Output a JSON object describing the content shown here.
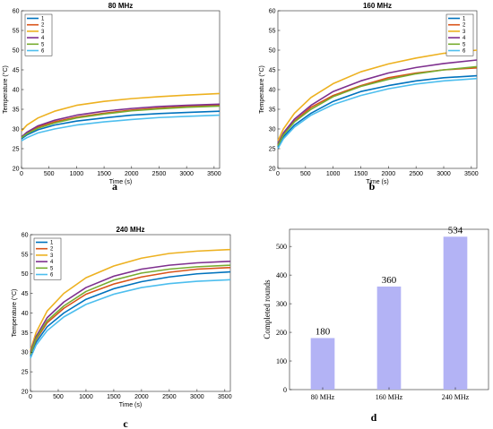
{
  "colors": [
    "#0072BD",
    "#D95319",
    "#EDB120",
    "#7E2F8E",
    "#77AC30",
    "#4DBEEE"
  ],
  "bar_color": "#b3b3f5",
  "chart_data": [
    {
      "type": "line",
      "panel": "a",
      "title": "80 MHz",
      "xlabel": "Time (s)",
      "ylabel": "Temperature (°C)",
      "xlim": [
        0,
        3600
      ],
      "ylim": [
        20,
        60
      ],
      "xticks": [
        0,
        500,
        1000,
        1500,
        2000,
        2500,
        3000,
        3500
      ],
      "yticks": [
        20,
        25,
        30,
        35,
        40,
        45,
        50,
        55,
        60
      ],
      "legend_position": "top-left",
      "series": [
        {
          "name": "1",
          "x": [
            0,
            100,
            300,
            600,
            1000,
            1500,
            2000,
            2500,
            3000,
            3600
          ],
          "y": [
            27.5,
            28.5,
            29.8,
            31.0,
            32.0,
            32.8,
            33.5,
            33.9,
            34.2,
            34.5
          ]
        },
        {
          "name": "2",
          "x": [
            0,
            100,
            300,
            600,
            1000,
            1500,
            2000,
            2500,
            3000,
            3600
          ],
          "y": [
            28.0,
            29.0,
            30.5,
            31.8,
            33.0,
            34.0,
            34.8,
            35.3,
            35.7,
            36.0
          ]
        },
        {
          "name": "3",
          "x": [
            0,
            100,
            300,
            600,
            1000,
            1500,
            2000,
            2500,
            3000,
            3600
          ],
          "y": [
            29.5,
            31.0,
            32.8,
            34.5,
            36.0,
            37.0,
            37.7,
            38.2,
            38.6,
            39.0
          ]
        },
        {
          "name": "4",
          "x": [
            0,
            100,
            300,
            600,
            1000,
            1500,
            2000,
            2500,
            3000,
            3600
          ],
          "y": [
            28.0,
            29.2,
            30.8,
            32.2,
            33.5,
            34.5,
            35.2,
            35.7,
            36.0,
            36.3
          ]
        },
        {
          "name": "5",
          "x": [
            0,
            100,
            300,
            600,
            1000,
            1500,
            2000,
            2500,
            3000,
            3600
          ],
          "y": [
            27.8,
            28.8,
            30.2,
            31.5,
            32.8,
            33.8,
            34.6,
            35.1,
            35.5,
            35.8
          ]
        },
        {
          "name": "6",
          "x": [
            0,
            100,
            300,
            600,
            1000,
            1500,
            2000,
            2500,
            3000,
            3600
          ],
          "y": [
            27.0,
            27.8,
            29.0,
            30.0,
            31.0,
            31.8,
            32.4,
            32.9,
            33.2,
            33.5
          ]
        }
      ]
    },
    {
      "type": "line",
      "panel": "b",
      "title": "160 MHz",
      "xlabel": "Time (s)",
      "ylabel": "Temperature (°C)",
      "xlim": [
        0,
        3600
      ],
      "ylim": [
        20,
        60
      ],
      "xticks": [
        0,
        500,
        1000,
        1500,
        2000,
        2500,
        3000,
        3500
      ],
      "yticks": [
        20,
        25,
        30,
        35,
        40,
        45,
        50,
        55,
        60
      ],
      "legend_position": "top-right",
      "series": [
        {
          "name": "1",
          "x": [
            0,
            100,
            300,
            600,
            1000,
            1500,
            2000,
            2500,
            3000,
            3600
          ],
          "y": [
            25.5,
            28.0,
            31.0,
            34.0,
            37.0,
            39.5,
            41.0,
            42.2,
            43.0,
            43.5
          ]
        },
        {
          "name": "2",
          "x": [
            0,
            100,
            300,
            600,
            1000,
            1500,
            2000,
            2500,
            3000,
            3600
          ],
          "y": [
            26.0,
            28.8,
            32.0,
            35.5,
            38.5,
            41.0,
            43.0,
            44.2,
            45.0,
            45.5
          ]
        },
        {
          "name": "3",
          "x": [
            0,
            100,
            300,
            600,
            1000,
            1500,
            2000,
            2500,
            3000,
            3600
          ],
          "y": [
            27.0,
            30.0,
            34.0,
            38.0,
            41.5,
            44.5,
            46.5,
            48.0,
            49.2,
            50.0
          ]
        },
        {
          "name": "4",
          "x": [
            0,
            100,
            300,
            600,
            1000,
            1500,
            2000,
            2500,
            3000,
            3600
          ],
          "y": [
            26.2,
            29.0,
            32.5,
            36.0,
            39.5,
            42.2,
            44.2,
            45.6,
            46.6,
            47.5
          ]
        },
        {
          "name": "5",
          "x": [
            0,
            100,
            300,
            600,
            1000,
            1500,
            2000,
            2500,
            3000,
            3600
          ],
          "y": [
            25.8,
            28.5,
            31.8,
            35.0,
            38.2,
            40.8,
            42.6,
            44.0,
            45.0,
            45.8
          ]
        },
        {
          "name": "6",
          "x": [
            0,
            100,
            300,
            600,
            1000,
            1500,
            2000,
            2500,
            3000,
            3600
          ],
          "y": [
            25.0,
            27.5,
            30.5,
            33.5,
            36.2,
            38.5,
            40.2,
            41.4,
            42.2,
            42.8
          ]
        }
      ]
    },
    {
      "type": "line",
      "panel": "c",
      "title": "240 MHz",
      "xlabel": "Time (s)",
      "ylabel": "Temperature (°C)",
      "xlim": [
        0,
        3600
      ],
      "ylim": [
        20,
        60
      ],
      "xticks": [
        0,
        500,
        1000,
        1500,
        2000,
        2500,
        3000,
        3500
      ],
      "yticks": [
        20,
        25,
        30,
        35,
        40,
        45,
        50,
        55,
        60
      ],
      "legend_position": "top-left",
      "series": [
        {
          "name": "1",
          "x": [
            0,
            100,
            300,
            600,
            1000,
            1500,
            2000,
            2500,
            3000,
            3600
          ],
          "y": [
            29.0,
            32.5,
            36.5,
            40.0,
            43.5,
            46.2,
            48.0,
            49.2,
            50.0,
            50.5
          ]
        },
        {
          "name": "2",
          "x": [
            0,
            100,
            300,
            600,
            1000,
            1500,
            2000,
            2500,
            3000,
            3600
          ],
          "y": [
            29.5,
            33.2,
            37.5,
            41.2,
            44.8,
            47.4,
            49.2,
            50.4,
            51.2,
            51.6
          ]
        },
        {
          "name": "3",
          "x": [
            0,
            100,
            300,
            600,
            1000,
            1500,
            2000,
            2500,
            3000,
            3600
          ],
          "y": [
            30.5,
            35.0,
            40.5,
            45.0,
            49.0,
            52.0,
            54.0,
            55.2,
            55.8,
            56.2
          ]
        },
        {
          "name": "4",
          "x": [
            0,
            100,
            300,
            600,
            1000,
            1500,
            2000,
            2500,
            3000,
            3600
          ],
          "y": [
            30.0,
            34.0,
            38.8,
            42.8,
            46.5,
            49.4,
            51.2,
            52.2,
            52.8,
            53.2
          ]
        },
        {
          "name": "5",
          "x": [
            0,
            100,
            300,
            600,
            1000,
            1500,
            2000,
            2500,
            3000,
            3600
          ],
          "y": [
            29.5,
            33.5,
            38.0,
            41.8,
            45.5,
            48.4,
            50.2,
            51.2,
            51.8,
            52.2
          ]
        },
        {
          "name": "6",
          "x": [
            0,
            100,
            300,
            600,
            1000,
            1500,
            2000,
            2500,
            3000,
            3600
          ],
          "y": [
            28.5,
            31.8,
            35.5,
            39.0,
            42.2,
            44.8,
            46.5,
            47.5,
            48.1,
            48.5
          ]
        }
      ]
    },
    {
      "type": "bar",
      "panel": "d",
      "title": "",
      "xlabel": "",
      "ylabel": "Completed rounds",
      "categories": [
        "80 MHz",
        "160 MHz",
        "240 MHz"
      ],
      "values": [
        180,
        360,
        534
      ],
      "value_labels": [
        "180",
        "360",
        "534"
      ],
      "ylim": [
        0,
        560
      ],
      "yticks": [
        0,
        100,
        200,
        300,
        400,
        500
      ]
    }
  ]
}
